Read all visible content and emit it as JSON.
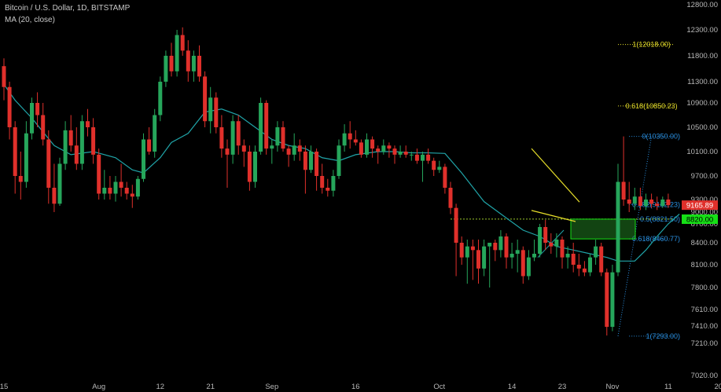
{
  "legend": {
    "symbol_line": "Bitcoin / U.S. Dollar, 1D, BITSTAMP",
    "indicator_line": "MA (20, close)"
  },
  "colors": {
    "background": "#000000",
    "up": "#26a65b",
    "down": "#e0302b",
    "ma": "#20a4a8",
    "fib_blue": "#2a8fe0",
    "fib_yellow": "#e8e02a",
    "support": "#9ac72a",
    "axis_text": "#b8b8b8",
    "price_badge": "#e0302b",
    "price_badge_green": "#16e016"
  },
  "chart_data": {
    "type": "candlestick",
    "title": "Bitcoin / U.S. Dollar, 1D, BITSTAMP",
    "ylim": [
      7000,
      12900
    ],
    "y_ticks": [
      7020.0,
      7210.0,
      7410.0,
      7610.0,
      7800.0,
      8100.0,
      8400.0,
      8700.0,
      9000.0,
      9300.0,
      9700.0,
      10100.0,
      10500.0,
      10900.0,
      11300.0,
      11800.0,
      12300.0,
      12800.0
    ],
    "x_ticks": [
      {
        "label": "15",
        "day": 0
      },
      {
        "label": "Aug",
        "day": 17
      },
      {
        "label": "12",
        "day": 28
      },
      {
        "label": "21",
        "day": 37
      },
      {
        "label": "Sep",
        "day": 48
      },
      {
        "label": "16",
        "day": 63
      },
      {
        "label": "Oct",
        "day": 78
      },
      {
        "label": "14",
        "day": 91
      },
      {
        "label": "23",
        "day": 100
      },
      {
        "label": "Nov",
        "day": 109
      },
      {
        "label": "11",
        "day": 119
      },
      {
        "label": "20",
        "day": 128
      }
    ],
    "ohlc": [
      [
        11600,
        11750,
        10950,
        11200
      ],
      [
        11200,
        11300,
        10300,
        10500
      ],
      [
        10500,
        10600,
        9400,
        9700
      ],
      [
        9700,
        10100,
        9300,
        9600
      ],
      [
        9600,
        10600,
        9500,
        10400
      ],
      [
        10400,
        11000,
        10300,
        10900
      ],
      [
        10900,
        11100,
        10500,
        10700
      ],
      [
        10700,
        10900,
        10200,
        10300
      ],
      [
        10300,
        10450,
        9200,
        9500
      ],
      [
        9500,
        9900,
        9000,
        9200
      ],
      [
        9200,
        10000,
        9150,
        9900
      ],
      [
        9900,
        10600,
        9800,
        10450
      ],
      [
        10450,
        10700,
        10100,
        10200
      ],
      [
        10200,
        10500,
        9800,
        9900
      ],
      [
        9900,
        10700,
        9800,
        10600
      ],
      [
        10600,
        10800,
        10350,
        10500
      ],
      [
        10500,
        10650,
        9900,
        10050
      ],
      [
        10050,
        10150,
        9300,
        9400
      ],
      [
        9400,
        9800,
        9300,
        9500
      ],
      [
        9500,
        9700,
        9300,
        9400
      ],
      [
        9400,
        9700,
        9250,
        9600
      ],
      [
        9600,
        9900,
        9350,
        9500
      ],
      [
        9500,
        9600,
        9300,
        9400
      ],
      [
        9400,
        9550,
        9100,
        9350
      ],
      [
        9350,
        9700,
        9300,
        9650
      ],
      [
        9650,
        10400,
        9600,
        10300
      ],
      [
        10300,
        10500,
        10050,
        10100
      ],
      [
        10100,
        10800,
        10000,
        10700
      ],
      [
        10700,
        11400,
        10600,
        11300
      ],
      [
        11300,
        11900,
        11200,
        11800
      ],
      [
        11800,
        12050,
        11400,
        11500
      ],
      [
        11500,
        12300,
        11400,
        12200
      ],
      [
        12200,
        12350,
        11800,
        11900
      ],
      [
        11900,
        12100,
        11300,
        11500
      ],
      [
        11500,
        11900,
        11300,
        11800
      ],
      [
        11800,
        12000,
        11300,
        11400
      ],
      [
        11400,
        11500,
        10500,
        10600
      ],
      [
        10600,
        11200,
        10400,
        11000
      ],
      [
        11000,
        11100,
        10400,
        10500
      ],
      [
        10500,
        10700,
        10000,
        10150
      ],
      [
        10150,
        10300,
        9500,
        10050
      ],
      [
        10050,
        10700,
        9900,
        10600
      ],
      [
        10600,
        10700,
        10050,
        10200
      ],
      [
        10200,
        10300,
        9850,
        10100
      ],
      [
        10100,
        10200,
        9450,
        9600
      ],
      [
        9600,
        10200,
        9500,
        10100
      ],
      [
        10100,
        11000,
        10050,
        10900
      ],
      [
        10900,
        10950,
        10050,
        10150
      ],
      [
        10150,
        10300,
        9900,
        10200
      ],
      [
        10200,
        10600,
        10100,
        10500
      ],
      [
        10500,
        10600,
        10100,
        10150
      ],
      [
        10150,
        10200,
        9850,
        10050
      ],
      [
        10050,
        10400,
        9950,
        10200
      ],
      [
        10200,
        10300,
        9950,
        10100
      ],
      [
        10100,
        10200,
        9400,
        9800
      ],
      [
        9800,
        10200,
        9750,
        10100
      ],
      [
        10100,
        10150,
        9450,
        9700
      ],
      [
        9700,
        9900,
        9400,
        9500
      ],
      [
        9500,
        9650,
        9350,
        9450
      ],
      [
        9450,
        9800,
        9350,
        9700
      ],
      [
        9700,
        10300,
        9650,
        10200
      ],
      [
        10200,
        10550,
        10100,
        10400
      ],
      [
        10400,
        10600,
        10150,
        10300
      ],
      [
        10300,
        10450,
        10200,
        10250
      ],
      [
        10250,
        10300,
        10000,
        10050
      ],
      [
        10050,
        10400,
        10000,
        10300
      ],
      [
        10300,
        10350,
        10000,
        10150
      ],
      [
        10150,
        10200,
        9900,
        10100
      ],
      [
        10100,
        10300,
        10050,
        10200
      ],
      [
        10200,
        10250,
        10000,
        10150
      ],
      [
        10150,
        10200,
        9900,
        10050
      ],
      [
        10050,
        10200,
        10000,
        10100
      ],
      [
        10100,
        10200,
        10000,
        10050
      ],
      [
        10050,
        10100,
        9950,
        10050
      ],
      [
        10050,
        10150,
        9900,
        9950
      ],
      [
        9950,
        10100,
        9600,
        10050
      ],
      [
        10050,
        10150,
        9900,
        9950
      ],
      [
        9950,
        10000,
        9700,
        9800
      ],
      [
        9800,
        9950,
        9750,
        9850
      ],
      [
        9850,
        9900,
        9400,
        9500
      ],
      [
        9500,
        9600,
        8950,
        9100
      ],
      [
        9100,
        9200,
        7950,
        8400
      ],
      [
        8400,
        8500,
        8100,
        8200
      ],
      [
        8200,
        8450,
        7850,
        8350
      ],
      [
        8350,
        8450,
        7900,
        8300
      ],
      [
        8300,
        8450,
        7850,
        8050
      ],
      [
        8050,
        8450,
        7950,
        8350
      ],
      [
        8350,
        8400,
        7800,
        8400
      ],
      [
        8400,
        8450,
        8150,
        8300
      ],
      [
        8300,
        8600,
        8200,
        8500
      ],
      [
        8500,
        8550,
        8050,
        8200
      ],
      [
        8200,
        8400,
        8050,
        8250
      ],
      [
        8250,
        8450,
        8000,
        8300
      ],
      [
        8300,
        8350,
        7850,
        7950
      ],
      [
        7950,
        8300,
        7900,
        8200
      ],
      [
        8200,
        8450,
        8150,
        8250
      ],
      [
        8250,
        8700,
        8200,
        8650
      ],
      [
        8650,
        8800,
        8300,
        8400
      ],
      [
        8400,
        8550,
        8250,
        8350
      ],
      [
        8350,
        8550,
        8200,
        8450
      ],
      [
        8450,
        8500,
        8050,
        8200
      ],
      [
        8200,
        8350,
        8050,
        8250
      ],
      [
        8250,
        8400,
        8000,
        8100
      ],
      [
        8100,
        8250,
        7950,
        8050
      ],
      [
        8050,
        8150,
        7950,
        8000
      ],
      [
        8000,
        8250,
        7950,
        8200
      ],
      [
        8200,
        8450,
        8100,
        8350
      ],
      [
        8350,
        8400,
        7950,
        8000
      ],
      [
        8000,
        8050,
        7300,
        7400
      ],
      [
        7400,
        8100,
        7350,
        8000
      ],
      [
        8000,
        9900,
        7950,
        9600
      ],
      [
        9600,
        10350,
        9150,
        9300
      ],
      [
        9300,
        9600,
        9000,
        9200
      ],
      [
        9200,
        9500,
        9050,
        9350
      ],
      [
        9350,
        9500,
        9050,
        9150
      ],
      [
        9150,
        9400,
        9050,
        9300
      ],
      [
        9300,
        9400,
        9100,
        9200
      ],
      [
        9200,
        9350,
        9050,
        9150
      ],
      [
        9150,
        9350,
        9100,
        9300
      ],
      [
        9300,
        9400,
        9100,
        9165.89
      ]
    ],
    "ma_20": [
      [
        0,
        11250
      ],
      [
        2,
        10950
      ],
      [
        5,
        10650
      ],
      [
        9,
        10200
      ],
      [
        12,
        10050
      ],
      [
        16,
        10100
      ],
      [
        20,
        10000
      ],
      [
        23,
        9800
      ],
      [
        25,
        9750
      ],
      [
        28,
        10000
      ],
      [
        30,
        10250
      ],
      [
        33,
        10400
      ],
      [
        36,
        10750
      ],
      [
        39,
        10800
      ],
      [
        42,
        10700
      ],
      [
        45,
        10500
      ],
      [
        48,
        10300
      ],
      [
        51,
        10200
      ],
      [
        54,
        10150
      ],
      [
        57,
        10000
      ],
      [
        60,
        9950
      ],
      [
        63,
        10050
      ],
      [
        67,
        10100
      ],
      [
        70,
        10100
      ],
      [
        73,
        10080
      ],
      [
        76,
        10080
      ],
      [
        79,
        10070
      ],
      [
        82,
        9750
      ],
      [
        86,
        9250
      ],
      [
        90,
        8850
      ],
      [
        93,
        8600
      ],
      [
        96,
        8500
      ],
      [
        99,
        8350
      ],
      [
        102,
        8300
      ],
      [
        105,
        8250
      ],
      [
        108,
        8200
      ],
      [
        110,
        8150
      ],
      [
        113,
        8150
      ],
      [
        115,
        8300
      ],
      [
        117,
        8500
      ],
      [
        119,
        8700
      ],
      [
        121,
        8950
      ]
    ],
    "fib_levels": [
      {
        "label": "1(12018.00)",
        "price": 12018.0,
        "color": "yellow"
      },
      {
        "label": "0.618(10850.23)",
        "price": 10850.23,
        "color": "yellow"
      },
      {
        "label": "0(10350.00)",
        "price": 10350.0,
        "color": "blue"
      },
      {
        "label": "0.382(9182.23)",
        "price": 9182.23,
        "color": "blue"
      },
      {
        "label": "0.5(8821.50)",
        "price": 8821.5,
        "color": "blue"
      },
      {
        "label": "0.618(8460.77)",
        "price": 8460.77,
        "color": "blue"
      },
      {
        "label": "1(7293.00)",
        "price": 7293.0,
        "color": "blue"
      }
    ],
    "support_level": 8821.5,
    "target_zone": {
      "from_price": 8460.77,
      "to_price": 8821.5
    },
    "price_labels": [
      {
        "text": "9165.89",
        "price": 9165.89,
        "color": "red"
      },
      {
        "text": "8820.00",
        "price": 8820.0,
        "color": "green"
      }
    ]
  }
}
